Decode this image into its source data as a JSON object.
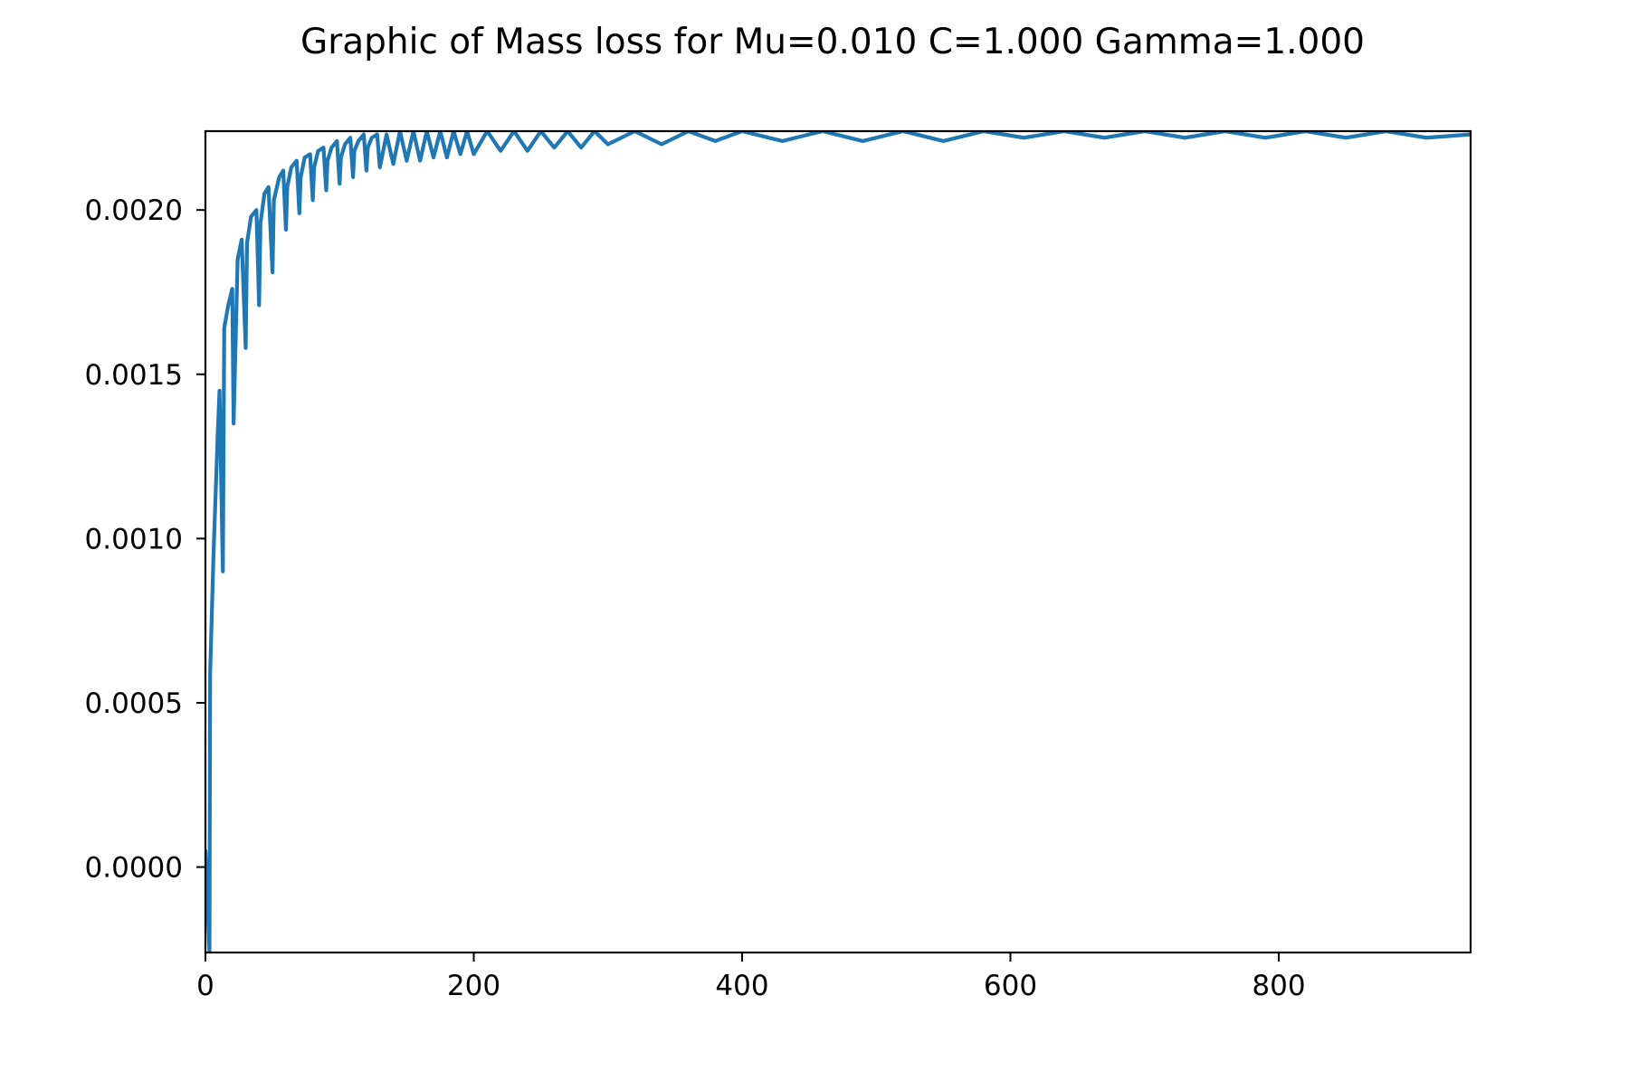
{
  "figure": {
    "title": "Graphic of Mass loss for Mu=0.010 C=1.000 Gamma=1.000"
  },
  "chart_data": {
    "type": "line",
    "title": "Graphic of Mass loss for Mu=0.010 C=1.000 Gamma=1.000",
    "xlabel": "",
    "ylabel": "",
    "xlim": [
      0,
      943
    ],
    "ylim": [
      -0.00026,
      0.00224
    ],
    "x_ticks": [
      0,
      200,
      400,
      600,
      800
    ],
    "x_tick_labels": [
      "0",
      "200",
      "400",
      "600",
      "800"
    ],
    "y_ticks": [
      0.0,
      0.0005,
      0.001,
      0.0015,
      0.002
    ],
    "y_tick_labels": [
      "0.0000",
      "0.0005",
      "0.0010",
      "0.0015",
      "0.0020"
    ],
    "grid": false,
    "legend": "none",
    "line_color": "#1f77b4",
    "series": [
      {
        "x": [
          0,
          3,
          3.5,
          6,
          9,
          10.5,
          13,
          14,
          17,
          20,
          21,
          24,
          27,
          30,
          31,
          34,
          38,
          40,
          41,
          44,
          47,
          50,
          51,
          55,
          58,
          60,
          61,
          64,
          68,
          70,
          71,
          74,
          78,
          80,
          81,
          84,
          88,
          90,
          91,
          94,
          98,
          100,
          101,
          104,
          108,
          110,
          111,
          114,
          118,
          120,
          121,
          124,
          128,
          130,
          135,
          140,
          145,
          150,
          155,
          160,
          165,
          170,
          175,
          180,
          185,
          190,
          195,
          200,
          210,
          220,
          230,
          240,
          250,
          260,
          270,
          280,
          290,
          300,
          320,
          340,
          360,
          380,
          400,
          430,
          460,
          490,
          520,
          550,
          580,
          610,
          640,
          670,
          700,
          730,
          760,
          790,
          820,
          850,
          880,
          910,
          943
        ],
        "y": [
          5e-05,
          -0.00026,
          0.00059,
          0.00095,
          0.0013,
          0.00145,
          0.0009,
          0.00164,
          0.00171,
          0.00176,
          0.00135,
          0.00185,
          0.00191,
          0.00158,
          0.0019,
          0.00198,
          0.002,
          0.00171,
          0.00196,
          0.00205,
          0.00207,
          0.00181,
          0.00203,
          0.0021,
          0.00212,
          0.00194,
          0.00207,
          0.00213,
          0.00215,
          0.00199,
          0.0021,
          0.00216,
          0.00217,
          0.00203,
          0.00213,
          0.00218,
          0.00219,
          0.00206,
          0.00215,
          0.00219,
          0.00221,
          0.00208,
          0.00216,
          0.0022,
          0.00222,
          0.0021,
          0.00218,
          0.00221,
          0.00223,
          0.00212,
          0.00219,
          0.00222,
          0.00223,
          0.00213,
          0.00223,
          0.00214,
          0.00224,
          0.00215,
          0.00224,
          0.00215,
          0.00224,
          0.00216,
          0.00224,
          0.00216,
          0.00224,
          0.00217,
          0.00224,
          0.00217,
          0.00224,
          0.00218,
          0.00224,
          0.00218,
          0.00224,
          0.00219,
          0.00224,
          0.00219,
          0.00224,
          0.0022,
          0.00224,
          0.0022,
          0.00224,
          0.00221,
          0.00224,
          0.00221,
          0.00224,
          0.00221,
          0.00224,
          0.00221,
          0.00224,
          0.00222,
          0.00224,
          0.00222,
          0.00224,
          0.00222,
          0.00224,
          0.00222,
          0.00224,
          0.00222,
          0.00224,
          0.00222,
          0.00223
        ]
      }
    ]
  }
}
